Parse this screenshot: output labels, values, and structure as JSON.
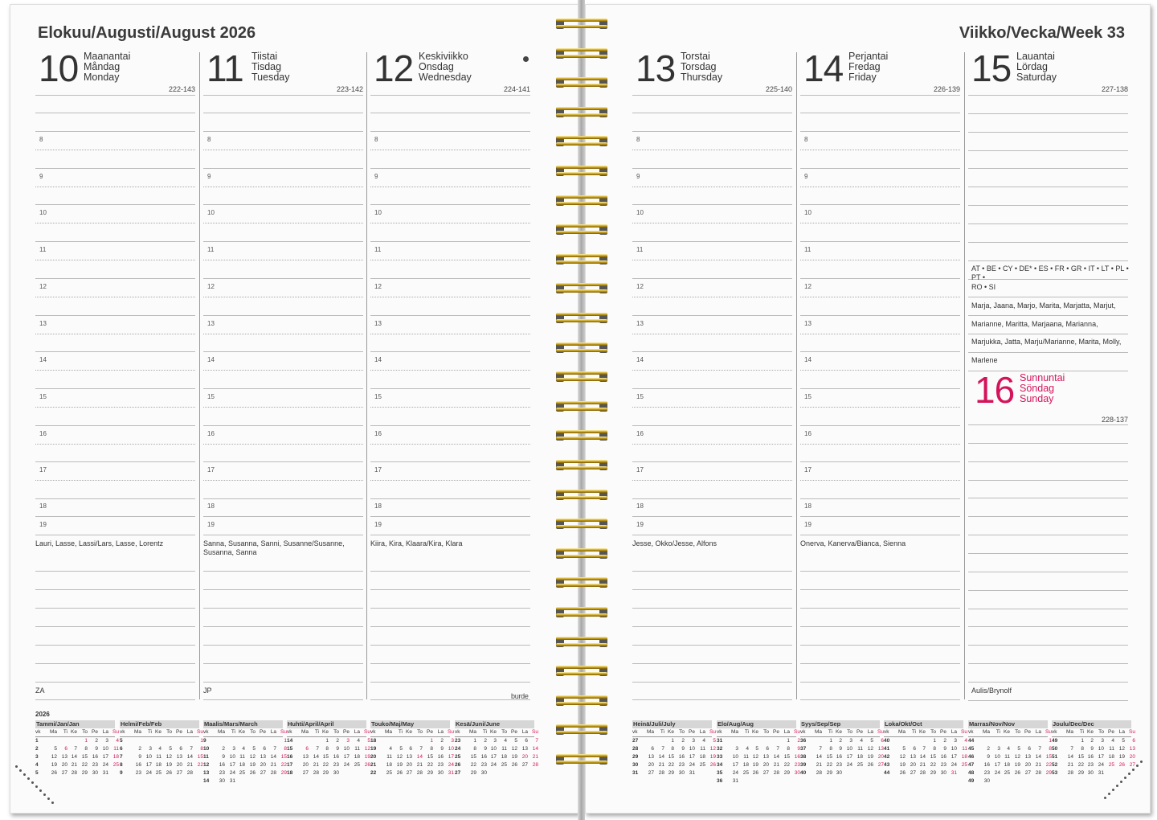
{
  "left_title": "Elokuu/Augusti/August 2026",
  "right_title": "Viikko/Vecka/Week 33",
  "brand": "burde",
  "colors": {
    "accent_red": "#d4145a",
    "text": "#333333"
  },
  "hours": [
    "8",
    "9",
    "10",
    "11",
    "12",
    "13",
    "14",
    "15",
    "16",
    "17",
    "18",
    "19"
  ],
  "days": [
    {
      "number": "10",
      "names": [
        "Maanantai",
        "Måndag",
        "Monday"
      ],
      "code": "222-143",
      "name_days": "Lauri, Lasse, Lassi/Lars, Lasse, Lorentz",
      "note": "ZA"
    },
    {
      "number": "11",
      "names": [
        "Tiistai",
        "Tisdag",
        "Tuesday"
      ],
      "code": "223-142",
      "name_days": "Sanna, Susanna, Sanni, Susanne/Susanne, Susanna, Sanna",
      "note": "JP"
    },
    {
      "number": "12",
      "names": [
        "Keskiviikko",
        "Onsdag",
        "Wednesday"
      ],
      "code": "224-141",
      "name_days": "Kiira, Kira, Klaara/Kira, Klara",
      "note": "",
      "moon_icon": "new-moon-icon"
    },
    {
      "number": "13",
      "names": [
        "Torstai",
        "Torsdag",
        "Thursday"
      ],
      "code": "225-140",
      "name_days": "Jesse, Okko/Jesse, Alfons",
      "note": ""
    },
    {
      "number": "14",
      "names": [
        "Perjantai",
        "Fredag",
        "Friday"
      ],
      "code": "226-139",
      "name_days": "Onerva, Kanerva/Bianca, Sienna",
      "note": ""
    },
    {
      "number": "15",
      "names": [
        "Lauantai",
        "Lördag",
        "Saturday"
      ],
      "code": "227-138",
      "lines": [
        "AT • BE • CY • DE* • ES • FR • GR • IT • LT • PL • PT •",
        "RO • SI",
        "Marja, Jaana, Marjo, Marita, Marjatta, Marjut,",
        "Marianne, Maritta, Marjaana, Marianna,",
        "Marjukka, Jatta, Marju/Marianne, Marita, Molly,",
        "Marlene"
      ]
    }
  ],
  "sunday": {
    "number": "16",
    "names": [
      "Sunnuntai",
      "Söndag",
      "Sunday"
    ],
    "code": "228-137",
    "note": "Aulis/Brynolf"
  },
  "mini_calendar": {
    "year": "2026",
    "header": [
      "vk",
      "Ma",
      "Ti",
      "Ke",
      "To",
      "Pe",
      "La",
      "Su"
    ],
    "months": [
      {
        "name": "Tammi/Jan/Jan",
        "offset": 3,
        "days": 31,
        "first_week": 1,
        "red": [
          1,
          6
        ]
      },
      {
        "name": "Helmi/Feb/Feb",
        "offset": 6,
        "days": 28,
        "first_week": 5,
        "red": []
      },
      {
        "name": "Maalis/Mars/March",
        "offset": 6,
        "days": 31,
        "first_week": 9,
        "red": []
      },
      {
        "name": "Huhti/April/April",
        "offset": 2,
        "days": 30,
        "first_week": 14,
        "red": [
          3,
          6
        ]
      },
      {
        "name": "Touko/Maj/May",
        "offset": 4,
        "days": 31,
        "first_week": 18,
        "red": [
          1,
          14
        ]
      },
      {
        "name": "Kesä/Juni/June",
        "offset": 0,
        "days": 30,
        "first_week": 23,
        "red": [
          20
        ]
      },
      {
        "name": "Heinä/Juli/July",
        "offset": 2,
        "days": 31,
        "first_week": 27,
        "red": []
      },
      {
        "name": "Elo/Aug/Aug",
        "offset": 5,
        "days": 31,
        "first_week": 31,
        "red": []
      },
      {
        "name": "Syys/Sep/Sep",
        "offset": 1,
        "days": 30,
        "first_week": 36,
        "red": []
      },
      {
        "name": "Loka/Okt/Oct",
        "offset": 3,
        "days": 31,
        "first_week": 40,
        "red": [
          31
        ]
      },
      {
        "name": "Marras/Nov/Nov",
        "offset": 6,
        "days": 30,
        "first_week": 44,
        "red": []
      },
      {
        "name": "Joulu/Dec/Dec",
        "offset": 1,
        "days": 31,
        "first_week": 49,
        "red": [
          25,
          26
        ]
      }
    ]
  }
}
